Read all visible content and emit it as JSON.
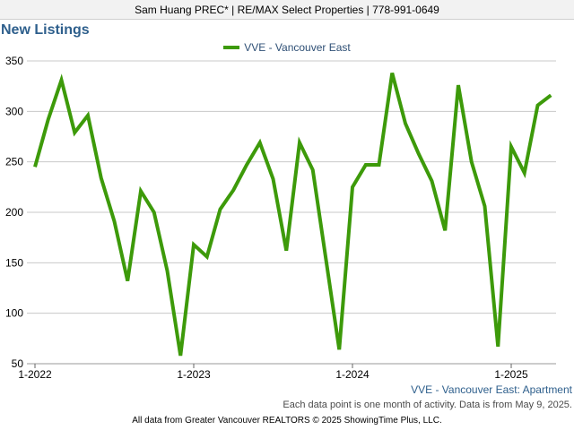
{
  "header": {
    "agent_line": "Sam Huang PREC* | RE/MAX Select Properties | 778-991-0649"
  },
  "chart_data": {
    "type": "line",
    "title": "New Listings",
    "subtitle": "VVE - Vancouver East: Apartment",
    "x_start": "2022-01",
    "x_ticks": [
      "1-2022",
      "1-2023",
      "1-2024",
      "1-2025"
    ],
    "y_ticks": [
      50,
      100,
      150,
      200,
      250,
      300,
      350
    ],
    "ylim": [
      50,
      350
    ],
    "grid": true,
    "legend_position": "top-center",
    "series": [
      {
        "name": "VVE - Vancouver East",
        "color": "#3d9a0a",
        "values": [
          245,
          292,
          331,
          279,
          296,
          234,
          191,
          132,
          221,
          200,
          142,
          58,
          168,
          156,
          203,
          222,
          247,
          269,
          233,
          162,
          269,
          242,
          153,
          64,
          225,
          247,
          247,
          338,
          288,
          258,
          231,
          182,
          326,
          250,
          206,
          67,
          265,
          239,
          306,
          316
        ]
      }
    ]
  },
  "footer": {
    "note": "Each data point is one month of activity. Data is from May 9, 2025.",
    "credit": "All data from Greater Vancouver REALTORS © 2025 ShowingTime Plus, LLC."
  }
}
